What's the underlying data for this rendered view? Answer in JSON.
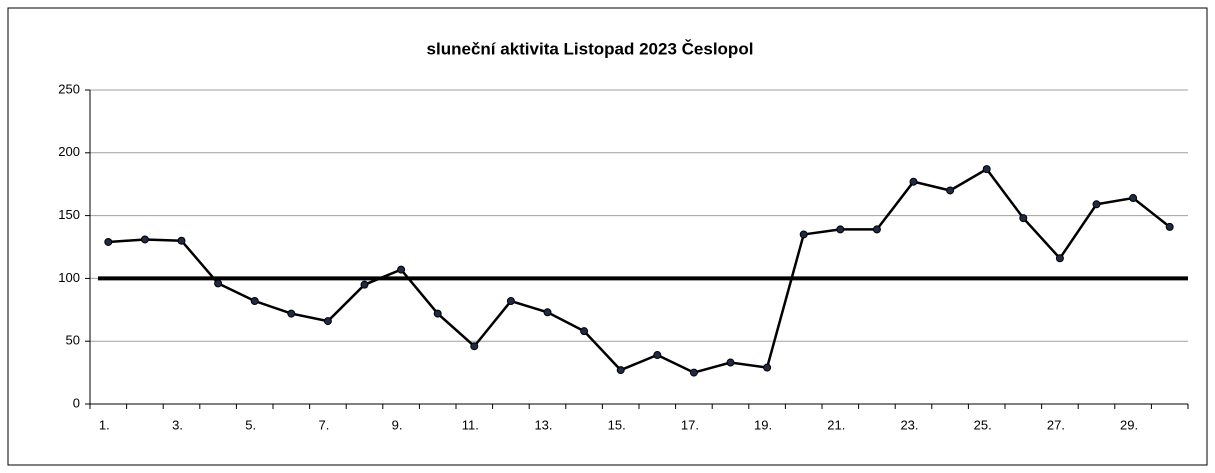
{
  "chart_data": {
    "type": "line",
    "title": "sluneční aktivita Listopad 2023 Česlopol",
    "categories": [
      "1.",
      null,
      "3.",
      null,
      "5.",
      null,
      "7.",
      null,
      "9.",
      null,
      "11.",
      null,
      "13.",
      null,
      "15.",
      null,
      "17.",
      null,
      "19.",
      null,
      "21.",
      null,
      "23.",
      null,
      "25.",
      null,
      "27.",
      null,
      "29.",
      null
    ],
    "series": [
      {
        "color": "#000000",
        "marker_color": "#1f2a44",
        "values": [
          129,
          131,
          130,
          96,
          82,
          72,
          66,
          95,
          107,
          72,
          46,
          82,
          73,
          58,
          27,
          39,
          25,
          33,
          29,
          135,
          139,
          139,
          177,
          170,
          187,
          148,
          116,
          159,
          164,
          141
        ]
      }
    ],
    "reference_line": 100,
    "ylim": [
      0,
      250
    ],
    "yticks": [
      0,
      50,
      100,
      150,
      200,
      250
    ],
    "grid": true
  }
}
